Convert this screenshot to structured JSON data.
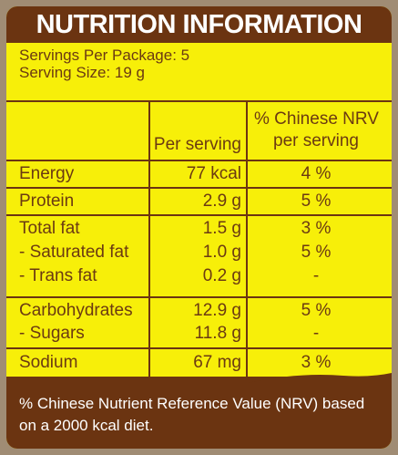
{
  "title": "NUTRITION INFORMATION",
  "servings_per_package": "Servings Per Package: 5",
  "serving_size": "Serving Size: 19 g",
  "header": {
    "col2": "Per serving",
    "col3_line1": "% Chinese NRV",
    "col3_line2": "per serving"
  },
  "rows": [
    {
      "label": "Energy",
      "value": "77 kcal",
      "nrv": "4 %"
    },
    {
      "label": "Protein",
      "value": "2.9 g",
      "nrv": "5 %"
    },
    {
      "label": "Total fat",
      "value": "1.5 g",
      "nrv": "3 %"
    },
    {
      "label": "- Saturated fat",
      "value": "1.0 g",
      "nrv": "5 %"
    },
    {
      "label": "- Trans fat",
      "value": "0.2 g",
      "nrv": "-"
    },
    {
      "label": "Carbohydrates",
      "value": "12.9 g",
      "nrv": "5 %"
    },
    {
      "label": "- Sugars",
      "value": "11.8 g",
      "nrv": "-"
    },
    {
      "label": "Sodium",
      "value": "67 mg",
      "nrv": "3 %"
    }
  ],
  "footnote": "% Chinese Nutrient Reference Value (NRV) based on a 2000 kcal diet.",
  "colors": {
    "brown": "#6b3411",
    "yellow": "#f7ef09",
    "text_brown": "#6b3a12"
  }
}
